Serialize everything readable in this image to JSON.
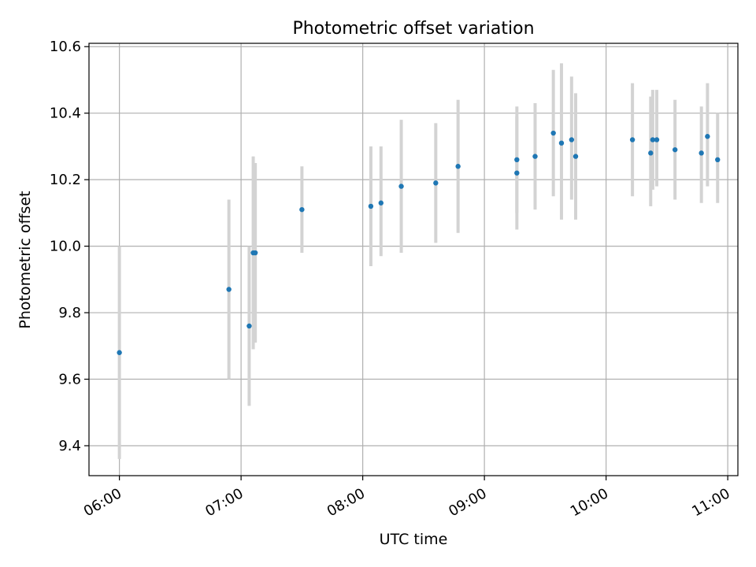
{
  "chart_data": {
    "type": "scatter",
    "title": "Photometric offset variation",
    "xlabel": "UTC time",
    "ylabel": "Photometric offset",
    "x_tick_labels": [
      "06:00",
      "07:00",
      "08:00",
      "09:00",
      "10:00",
      "11:00"
    ],
    "y_tick_labels": [
      "9.4",
      "9.6",
      "9.8",
      "10.0",
      "10.2",
      "10.4",
      "10.6"
    ],
    "x_ticks": [
      "06:00",
      "07:00",
      "08:00",
      "09:00",
      "10:00",
      "11:00"
    ],
    "y_ticks": [
      9.4,
      9.6,
      9.8,
      10.0,
      10.2,
      10.4,
      10.6
    ],
    "xlim": [
      "05:45",
      "11:05"
    ],
    "ylim": [
      9.31,
      10.61
    ],
    "grid": true,
    "marker_color": "#1f77b4",
    "errorbar_color": "#d3d3d3",
    "series": [
      {
        "points": [
          {
            "x": "06:00",
            "y": 9.68,
            "ylow": 9.36,
            "yhigh": 10.0
          },
          {
            "x": "06:54",
            "y": 9.87,
            "ylow": 9.6,
            "yhigh": 10.14
          },
          {
            "x": "07:04",
            "y": 9.76,
            "ylow": 9.52,
            "yhigh": 10.0
          },
          {
            "x": "07:06",
            "y": 9.98,
            "ylow": 9.69,
            "yhigh": 10.27
          },
          {
            "x": "07:07",
            "y": 9.98,
            "ylow": 9.71,
            "yhigh": 10.25
          },
          {
            "x": "07:30",
            "y": 10.11,
            "ylow": 9.98,
            "yhigh": 10.24
          },
          {
            "x": "08:04",
            "y": 10.12,
            "ylow": 9.94,
            "yhigh": 10.3
          },
          {
            "x": "08:09",
            "y": 10.13,
            "ylow": 9.97,
            "yhigh": 10.3
          },
          {
            "x": "08:19",
            "y": 10.18,
            "ylow": 9.98,
            "yhigh": 10.38
          },
          {
            "x": "08:36",
            "y": 10.19,
            "ylow": 10.01,
            "yhigh": 10.37
          },
          {
            "x": "08:47",
            "y": 10.24,
            "ylow": 10.04,
            "yhigh": 10.44
          },
          {
            "x": "09:16",
            "y": 10.22,
            "ylow": 10.05,
            "yhigh": 10.39
          },
          {
            "x": "09:16",
            "y": 10.26,
            "ylow": 10.1,
            "yhigh": 10.42
          },
          {
            "x": "09:25",
            "y": 10.27,
            "ylow": 10.11,
            "yhigh": 10.43
          },
          {
            "x": "09:34",
            "y": 10.34,
            "ylow": 10.15,
            "yhigh": 10.53
          },
          {
            "x": "09:38",
            "y": 10.31,
            "ylow": 10.08,
            "yhigh": 10.55
          },
          {
            "x": "09:43",
            "y": 10.32,
            "ylow": 10.14,
            "yhigh": 10.51
          },
          {
            "x": "09:45",
            "y": 10.27,
            "ylow": 10.08,
            "yhigh": 10.46
          },
          {
            "x": "10:13",
            "y": 10.32,
            "ylow": 10.15,
            "yhigh": 10.49
          },
          {
            "x": "10:22",
            "y": 10.28,
            "ylow": 10.12,
            "yhigh": 10.45
          },
          {
            "x": "10:23",
            "y": 10.32,
            "ylow": 10.17,
            "yhigh": 10.47
          },
          {
            "x": "10:25",
            "y": 10.32,
            "ylow": 10.18,
            "yhigh": 10.47
          },
          {
            "x": "10:34",
            "y": 10.29,
            "ylow": 10.14,
            "yhigh": 10.44
          },
          {
            "x": "10:47",
            "y": 10.28,
            "ylow": 10.13,
            "yhigh": 10.42
          },
          {
            "x": "10:50",
            "y": 10.33,
            "ylow": 10.18,
            "yhigh": 10.49
          },
          {
            "x": "10:55",
            "y": 10.26,
            "ylow": 10.13,
            "yhigh": 10.4
          }
        ]
      }
    ]
  }
}
